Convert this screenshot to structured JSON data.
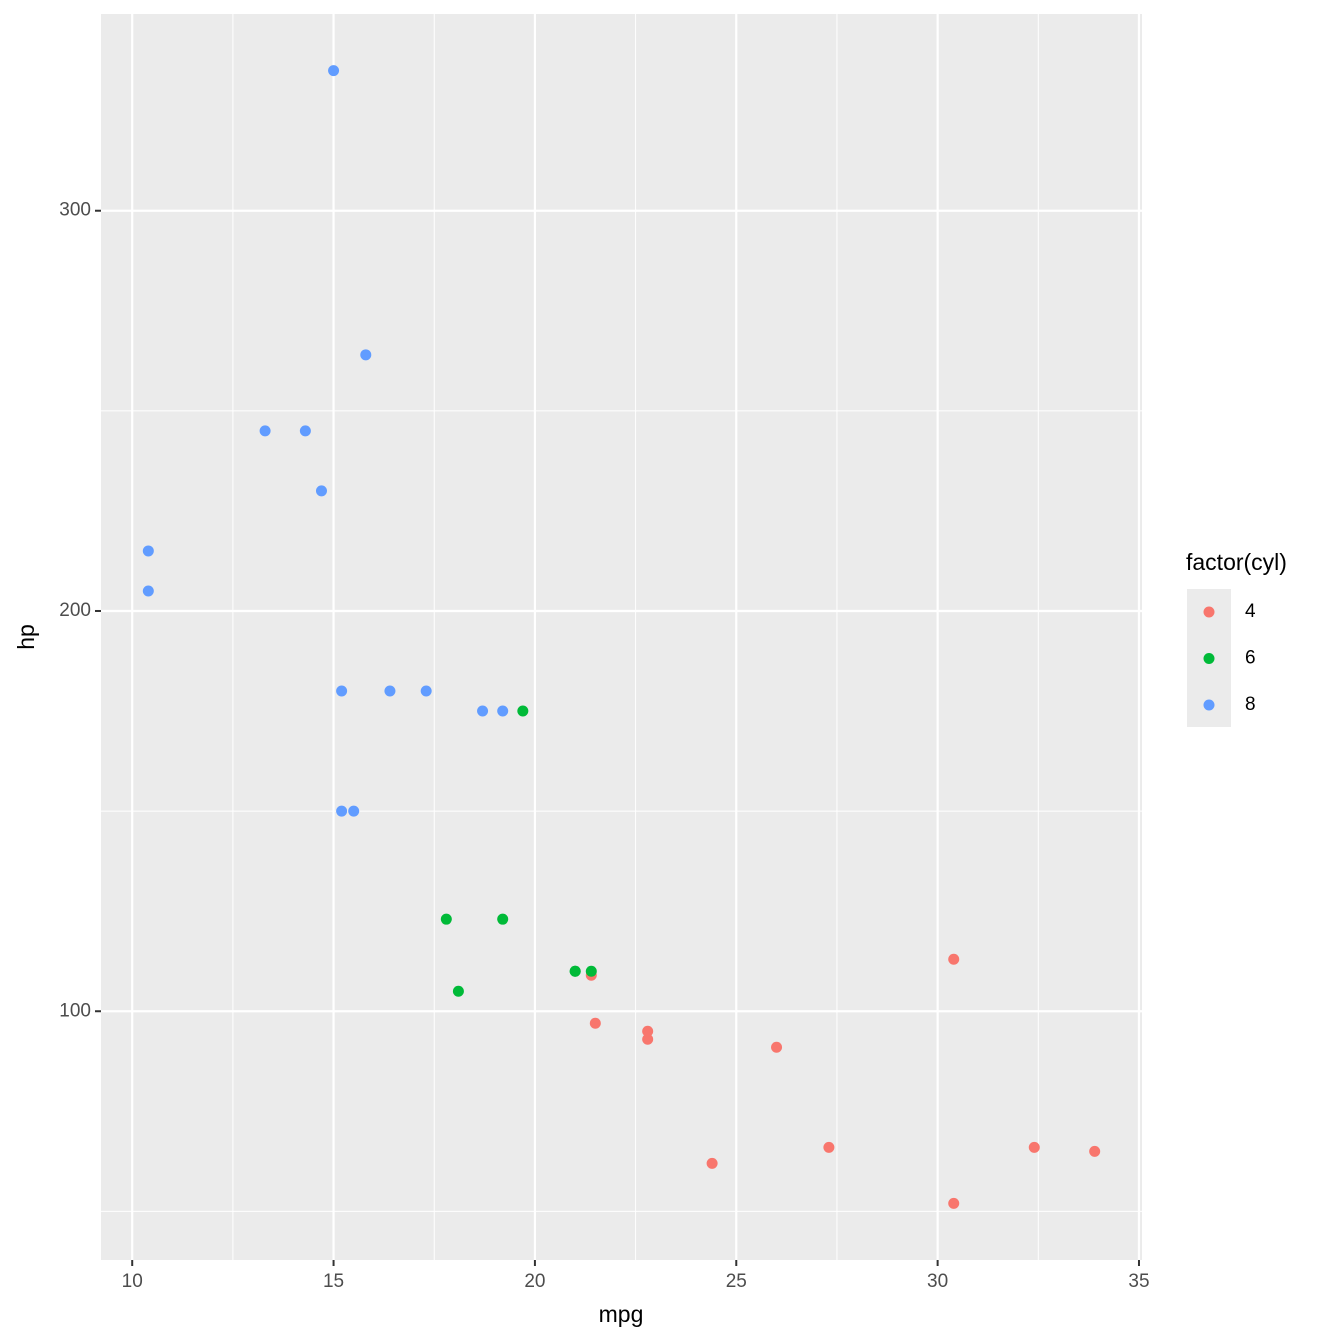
{
  "chart_data": {
    "type": "scatter",
    "x_label": "mpg",
    "y_label": "hp",
    "legend_title": "factor(cyl)",
    "legend_position": "right",
    "xlim": [
      9.225,
      35.075
    ],
    "ylim": [
      37.85,
      349.15
    ],
    "xticks": [
      10,
      15,
      20,
      25,
      30,
      35
    ],
    "yticks": [
      100,
      200,
      300
    ],
    "xminor": [
      12.5,
      17.5,
      22.5,
      27.5,
      32.5
    ],
    "yminor": [
      50,
      150,
      250
    ],
    "grid": true,
    "background": "#ebebeb",
    "series": [
      {
        "name": "4",
        "color": "#F8766D",
        "x": [
          22.8,
          24.4,
          22.8,
          32.4,
          30.4,
          33.9,
          21.5,
          27.3,
          26.0,
          30.4,
          21.4
        ],
        "values": [
          93,
          62,
          95,
          66,
          52,
          65,
          97,
          66,
          91,
          113,
          109
        ]
      },
      {
        "name": "6",
        "color": "#00BA38",
        "x": [
          21.0,
          21.0,
          21.4,
          18.1,
          19.2,
          17.8,
          19.7
        ],
        "values": [
          110,
          110,
          110,
          105,
          123,
          123,
          175
        ]
      },
      {
        "name": "8",
        "color": "#619CFF",
        "x": [
          18.7,
          14.3,
          16.4,
          17.3,
          15.2,
          10.4,
          10.4,
          14.7,
          15.5,
          15.2,
          13.3,
          19.2,
          15.8,
          15.0
        ],
        "values": [
          175,
          245,
          180,
          180,
          180,
          205,
          215,
          230,
          150,
          150,
          245,
          175,
          264,
          335
        ]
      }
    ]
  }
}
